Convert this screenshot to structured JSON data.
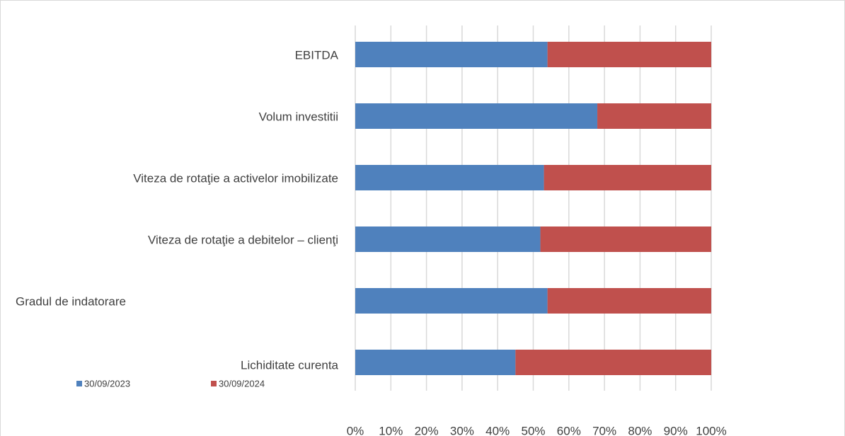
{
  "chart_data": {
    "type": "stacked-bar-horizontal",
    "categories": [
      "EBITDA",
      "Volum investitii",
      "Viteza de rotaţie a activelor imobilizate",
      "Viteza de rotaţie a debitelor – clienţi",
      "Gradul de indatorare",
      "Lichiditate curenta"
    ],
    "series": [
      {
        "name": "30/09/2023",
        "color": "#4f81bd",
        "values": [
          54,
          68,
          53,
          52,
          54,
          45
        ]
      },
      {
        "name": "30/09/2024",
        "color": "#c0504d",
        "values": [
          46,
          32,
          47,
          48,
          46,
          55
        ]
      }
    ],
    "xlim": [
      0,
      100
    ],
    "xticks": [
      {
        "value": 0,
        "label": "0%"
      },
      {
        "value": 10,
        "label": "10%"
      },
      {
        "value": 20,
        "label": "20%"
      },
      {
        "value": 30,
        "label": "30%"
      },
      {
        "value": 40,
        "label": "40%"
      },
      {
        "value": 50,
        "label": "50%"
      },
      {
        "value": 60,
        "label": "60%"
      },
      {
        "value": 70,
        "label": "70%"
      },
      {
        "value": 80,
        "label": "80%"
      },
      {
        "value": 90,
        "label": "90%"
      },
      {
        "value": 100,
        "label": "100%"
      }
    ],
    "grid": true
  }
}
